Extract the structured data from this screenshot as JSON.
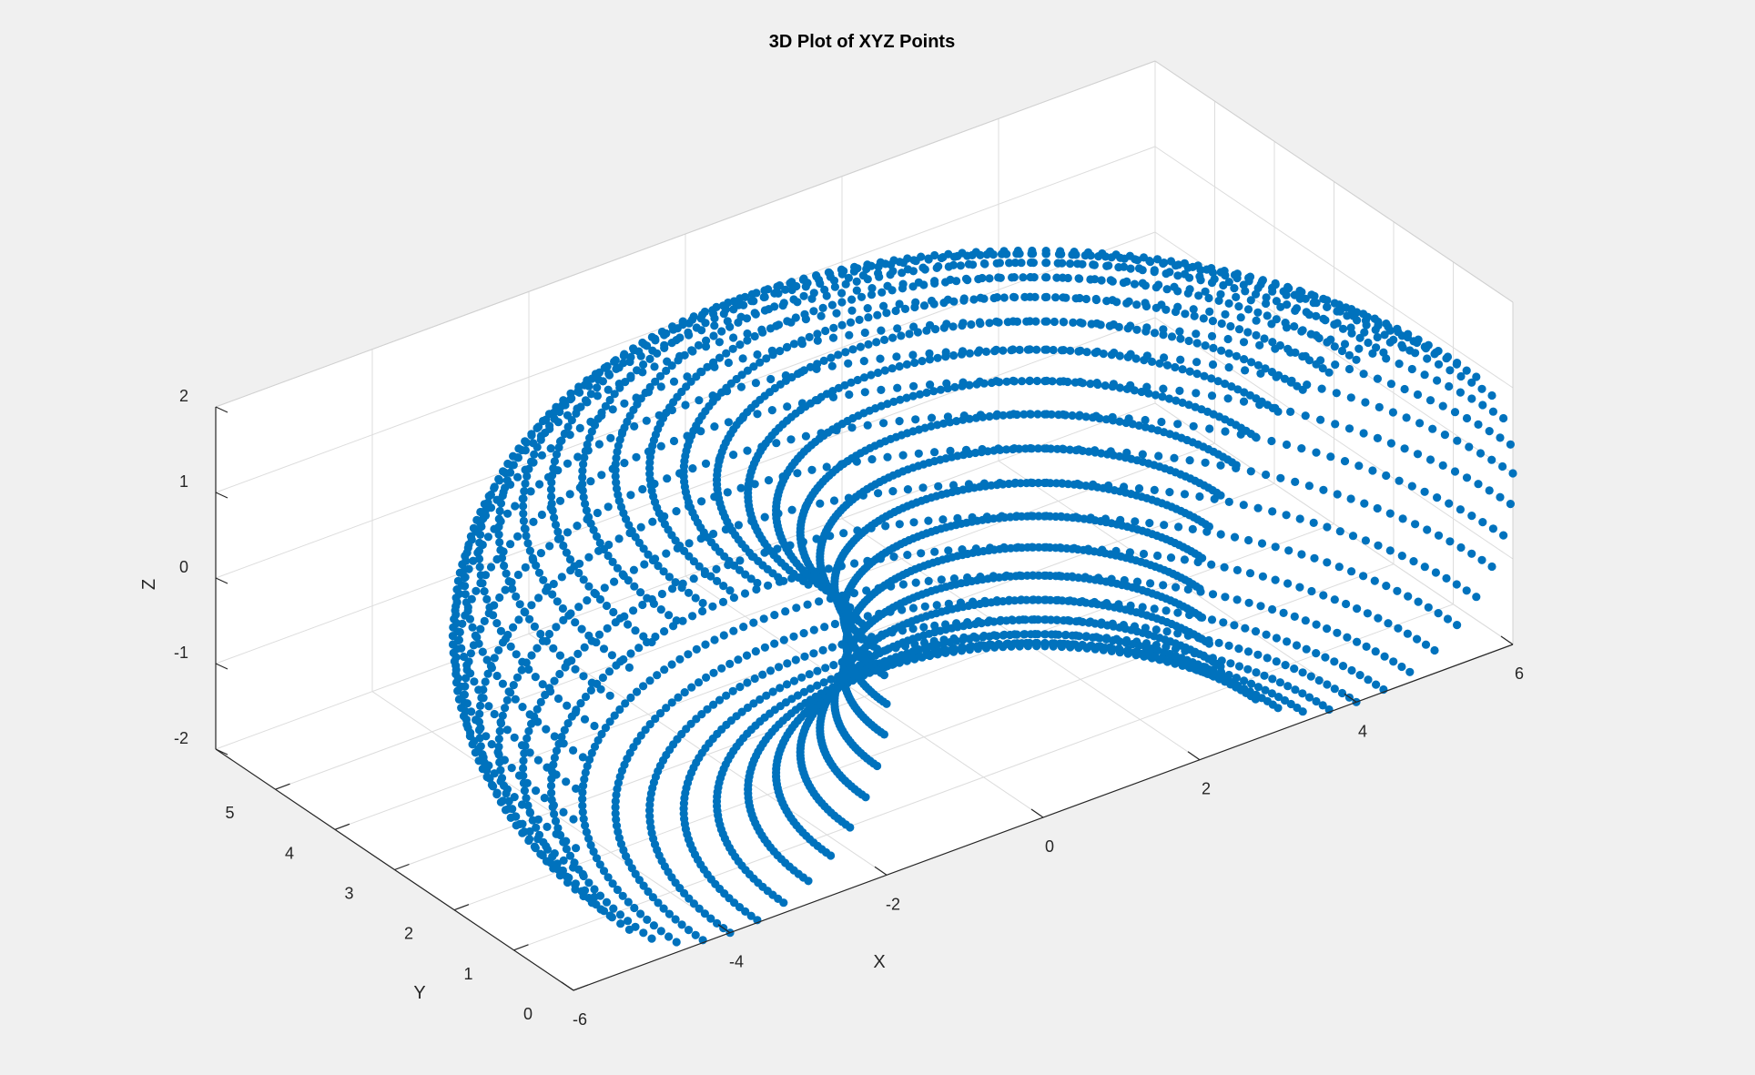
{
  "chart_data": {
    "type": "scatter",
    "title": "3D Plot of XYZ Points",
    "xlabel": "X",
    "ylabel": "Y",
    "zlabel": "Z",
    "xlim": [
      -6,
      6
    ],
    "ylim": [
      0,
      6
    ],
    "zlim": [
      -2,
      2
    ],
    "xticks": [
      "-6",
      "-4",
      "-2",
      "0",
      "2",
      "4",
      "6"
    ],
    "yticks": [
      "0",
      "1",
      "2",
      "3",
      "4",
      "5"
    ],
    "zticks": [
      "-2",
      "-1",
      "0",
      "1",
      "2"
    ],
    "grid": true,
    "marker_color": "#0072bd",
    "shape": "half-torus",
    "major_radius": 4,
    "minor_radius": 2,
    "y_range_shown": [
      0,
      6
    ],
    "center": [
      0,
      0,
      0
    ]
  }
}
